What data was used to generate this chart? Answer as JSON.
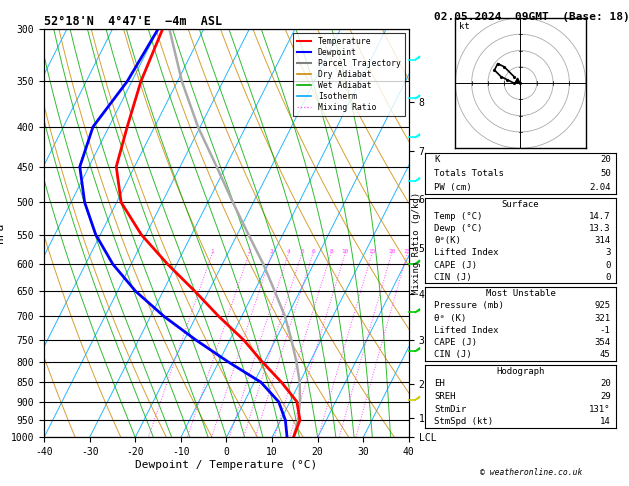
{
  "title_left": "52°18'N  4°47'E  −4m  ASL",
  "title_right": "02.05.2024  09GMT  (Base: 18)",
  "xlabel": "Dewpoint / Temperature (°C)",
  "ylabel_left": "hPa",
  "xmin": -40,
  "xmax": 40,
  "pmin": 300,
  "pmax": 1000,
  "pressure_levels": [
    300,
    350,
    400,
    450,
    500,
    550,
    600,
    650,
    700,
    750,
    800,
    850,
    900,
    950,
    1000
  ],
  "km_labels": [
    "8",
    "7",
    "6",
    "5",
    "4",
    "3",
    "2",
    "1",
    "LCL"
  ],
  "km_pressures": [
    372,
    430,
    495,
    572,
    655,
    750,
    855,
    945,
    1000
  ],
  "temp_profile_T": [
    14.7,
    14.2,
    11.5,
    6.0,
    -0.5,
    -7.0,
    -15.0,
    -23.0,
    -32.0,
    -41.0,
    -49.0,
    -54.0,
    -56.0,
    -58.0,
    -59.0
  ],
  "temp_profile_P": [
    1000,
    950,
    900,
    850,
    800,
    750,
    700,
    650,
    600,
    550,
    500,
    450,
    400,
    350,
    300
  ],
  "dewp_profile_T": [
    13.3,
    11.0,
    7.5,
    1.5,
    -8.0,
    -17.5,
    -27.0,
    -36.0,
    -44.0,
    -51.0,
    -57.0,
    -62.0,
    -63.5,
    -61.0,
    -60.0
  ],
  "dewp_profile_P": [
    1000,
    950,
    900,
    850,
    800,
    750,
    700,
    650,
    600,
    550,
    500,
    450,
    400,
    350,
    300
  ],
  "parcel_T": [
    14.7,
    13.8,
    12.2,
    10.0,
    7.0,
    3.5,
    -0.5,
    -5.5,
    -11.0,
    -17.5,
    -24.5,
    -32.0,
    -40.5,
    -49.0,
    -57.5
  ],
  "parcel_P": [
    1000,
    950,
    900,
    850,
    800,
    750,
    700,
    650,
    600,
    550,
    500,
    450,
    400,
    350,
    300
  ],
  "color_temp": "#ff0000",
  "color_dewp": "#0000ff",
  "color_parcel": "#aaaaaa",
  "color_dry_adiabat": "#cc8800",
  "color_wet_adiabat": "#00aa00",
  "color_isotherm": "#00aaff",
  "color_mixing_ratio": "#ff44ff",
  "color_background": "#ffffff",
  "mixing_ratio_values": [
    1,
    2,
    3,
    4,
    5,
    6,
    8,
    10,
    15,
    20,
    25
  ],
  "skew_factor": 45,
  "stats": {
    "K": 20,
    "Totals_Totals": 50,
    "PW_cm": "2.04",
    "Surface_Temp": "14.7",
    "Surface_Dewp": "13.3",
    "Surface_ThetaE": 314,
    "Surface_LiftedIndex": 3,
    "Surface_CAPE": 0,
    "Surface_CIN": 0,
    "MU_Pressure": 925,
    "MU_ThetaE": 321,
    "MU_LiftedIndex": -1,
    "MU_CAPE": 354,
    "MU_CIN": 45,
    "Hodo_EH": 20,
    "Hodo_SREH": 29,
    "Hodo_StmDir": "131°",
    "Hodo_StmSpd": 14
  }
}
